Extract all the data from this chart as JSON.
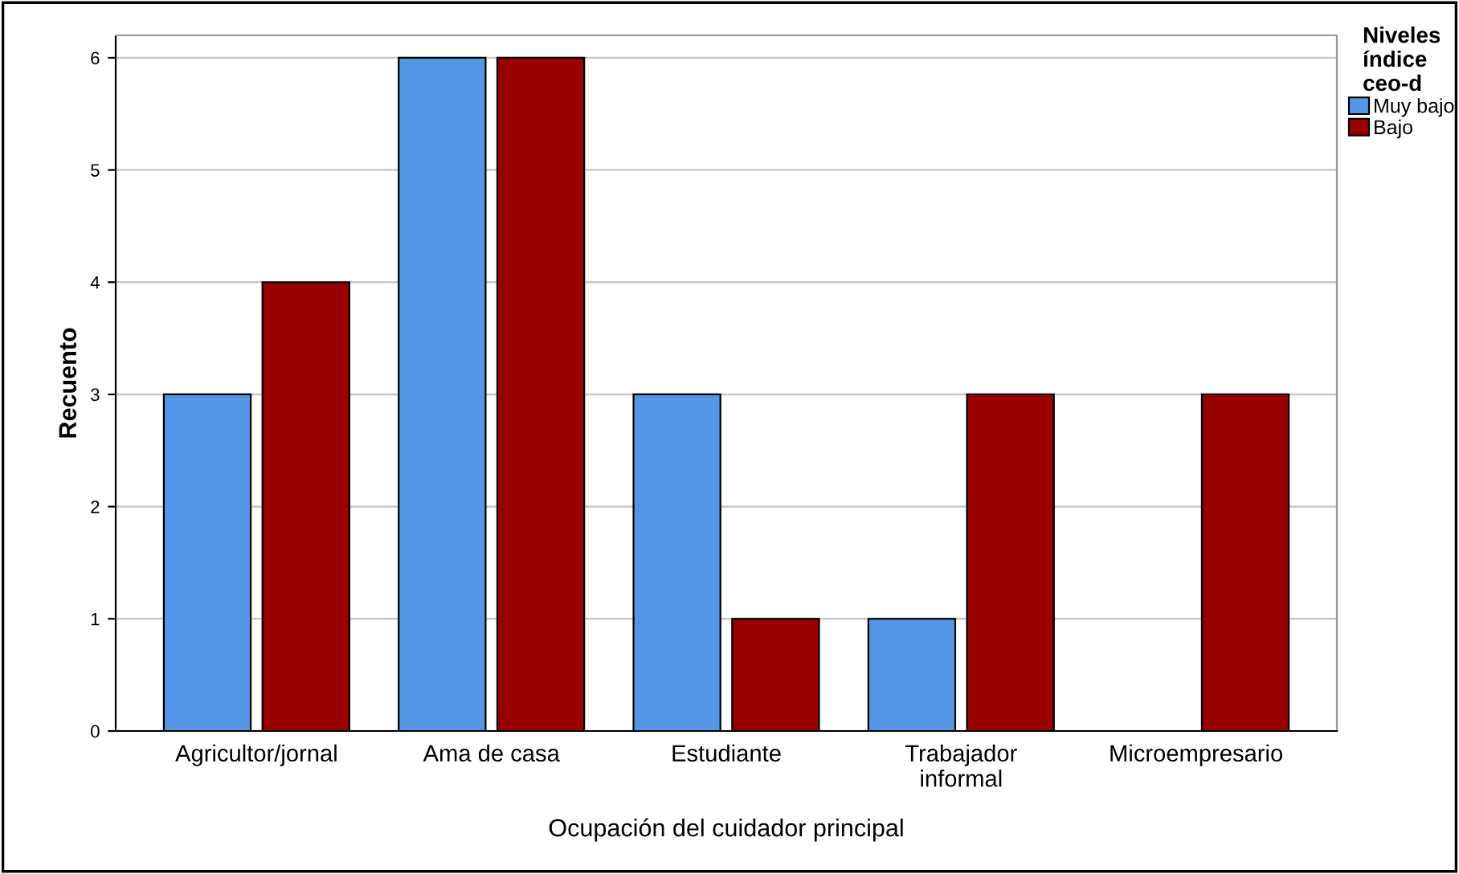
{
  "chart_data": {
    "type": "bar",
    "xlabel": "Ocupación del cuidador principal",
    "ylabel": "Recuento",
    "legend_title": "Niveles\níndice\nceo-d",
    "categories": [
      "Agricultor/jornal",
      "Ama de casa",
      "Estudiante",
      "Trabajador\ninformal",
      "Microempresario"
    ],
    "series": [
      {
        "name": "Muy bajo",
        "color": "#5596e6",
        "values": [
          3,
          6,
          3,
          1,
          null
        ]
      },
      {
        "name": "Bajo",
        "color": "#990000",
        "values": [
          4,
          6,
          1,
          3,
          3
        ]
      }
    ],
    "ylim": [
      0,
      6.2
    ],
    "yticks": [
      0,
      1,
      2,
      3,
      4,
      5,
      6
    ],
    "grid": "y",
    "legend": "top right"
  }
}
